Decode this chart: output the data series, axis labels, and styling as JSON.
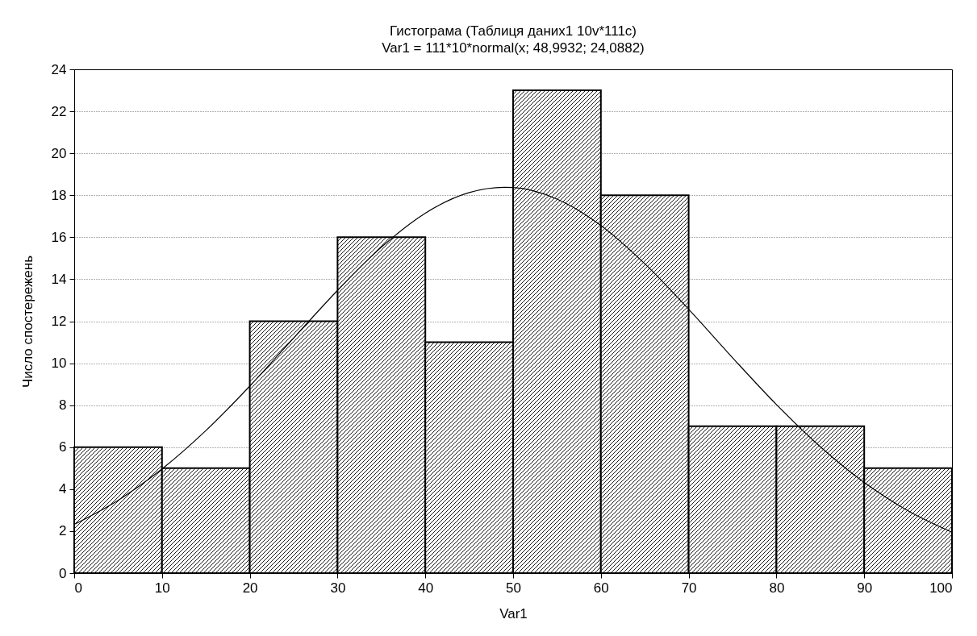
{
  "chart_data": {
    "type": "histogram",
    "title": "Гистограма (Таблиця даних1 10v*111c)",
    "subtitle": "Var1 = 111*10*normal(x; 48,9932; 24,0882)",
    "xlabel": "Var1",
    "ylabel": "Число спостережень",
    "bins": [
      0,
      10,
      20,
      30,
      40,
      50,
      60,
      70,
      80,
      90,
      100
    ],
    "values": [
      6,
      5,
      12,
      16,
      11,
      23,
      18,
      7,
      7,
      5
    ],
    "series": [
      {
        "type": "line",
        "color": "#000000",
        "x": [
          0,
          5,
          10,
          15,
          20,
          25,
          30,
          35,
          40,
          45,
          49,
          50,
          55,
          60,
          65,
          70,
          75,
          80,
          85,
          90,
          95,
          100
        ],
        "values": [
          2.32,
          3.47,
          4.96,
          6.79,
          8.91,
          11.2,
          13.47,
          15.53,
          17.15,
          18.13,
          18.38,
          18.37,
          17.82,
          16.56,
          14.74,
          12.57,
          10.26,
          8.03,
          6.02,
          4.32,
          2.97,
          1.95
        ]
      }
    ],
    "xlim": [
      0,
      100
    ],
    "xticks": [
      0,
      10,
      20,
      30,
      40,
      50,
      60,
      70,
      80,
      90,
      100
    ],
    "ylim": [
      0,
      24
    ],
    "yticks": [
      0,
      2,
      4,
      6,
      8,
      10,
      12,
      14,
      16,
      18,
      20,
      22,
      24
    ],
    "grid": "y"
  }
}
